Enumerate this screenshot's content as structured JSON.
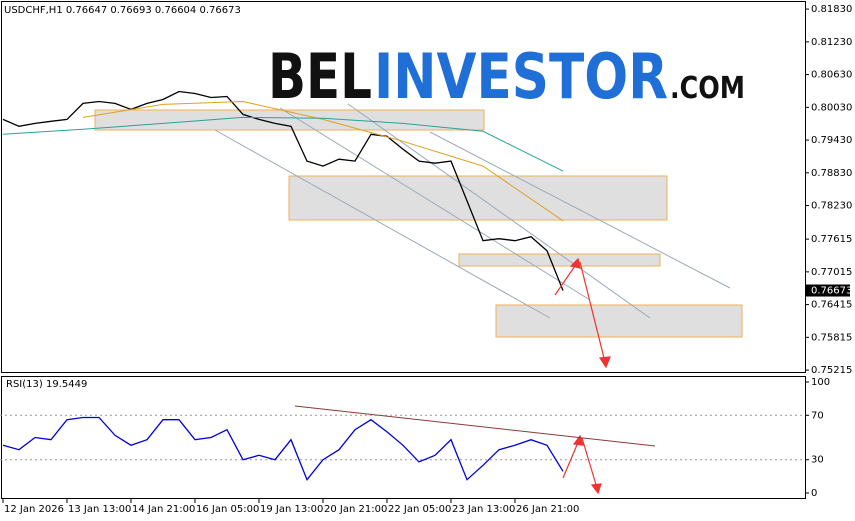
{
  "watermark": [
    "BEL",
    "INVESTOR",
    ".COM"
  ],
  "chart_data": [
    {
      "type": "line",
      "title": "USDCHF,H1  0.76647 0.76693 0.76604 0.76673",
      "x": [
        0,
        8,
        16,
        24,
        32,
        40,
        48,
        56,
        64,
        72,
        80,
        88,
        96,
        104,
        112,
        120,
        128,
        136,
        144,
        152,
        160,
        168,
        176,
        184,
        192,
        200,
        208,
        216,
        224,
        232,
        240,
        248,
        256,
        264,
        272,
        280
      ],
      "series": [
        {
          "color": "#000000",
          "values": [
            0.79809,
            0.79682,
            0.79736,
            0.79773,
            0.79809,
            0.80101,
            0.80137,
            0.80101,
            0.79992,
            0.80101,
            0.80174,
            0.8032,
            0.80283,
            0.8021,
            0.80229,
            0.799,
            0.79809,
            0.79736,
            0.79682,
            0.79044,
            0.78953,
            0.7908,
            0.79044,
            0.79536,
            0.79499,
            0.79263,
            0.79044,
            0.79007,
            0.79044,
            0.78315,
            0.77586,
            0.77622,
            0.77586,
            0.77659,
            0.77403,
            0.76673
          ]
        },
        {
          "color": "#e0a020",
          "x": [
            40,
            80,
            120,
            160,
            200,
            240,
            280
          ],
          "values": [
            0.79846,
            0.80083,
            0.80137,
            0.79809,
            0.79408,
            0.78953,
            0.7795
          ]
        },
        {
          "color": "#2aa198",
          "x": [
            0,
            40,
            80,
            120,
            160,
            200,
            240,
            280
          ],
          "values": [
            0.79536,
            0.79627,
            0.79736,
            0.79846,
            0.79828,
            0.79736,
            0.79591,
            0.78862
          ]
        }
      ],
      "current_price": 0.76673,
      "xlim": [
        -1.5,
        401
      ],
      "ylim": [
        0.7518,
        0.8196
      ],
      "yticks": [
        {
          "value": 0.8183,
          "label": "0.81830"
        },
        {
          "value": 0.8123,
          "label": "0.81230"
        },
        {
          "value": 0.8063,
          "label": "0.80630"
        },
        {
          "value": 0.8003,
          "label": "0.80030"
        },
        {
          "value": 0.7943,
          "label": "0.79430"
        },
        {
          "value": 0.7883,
          "label": "0.78830"
        },
        {
          "value": 0.7823,
          "label": "0.78230"
        },
        0.77615,
        0.77015,
        0.76415,
        0.75815,
        0.75215
      ]
    },
    {
      "type": "line",
      "title": "RSI(13) 19.5449",
      "x": [
        0,
        8,
        16,
        24,
        32,
        40,
        48,
        56,
        64,
        72,
        80,
        88,
        96,
        104,
        112,
        120,
        128,
        136,
        144,
        152,
        160,
        168,
        176,
        184,
        192,
        200,
        208,
        216,
        224,
        232,
        240,
        248,
        256,
        264,
        272,
        280
      ],
      "series": [
        {
          "color": "#0000dd",
          "values": [
            43,
            39,
            50,
            48,
            66,
            68,
            68,
            52,
            43,
            48,
            66,
            66,
            48,
            50,
            57,
            30,
            34,
            30,
            48,
            12,
            30,
            39,
            57,
            66,
            55,
            43,
            28,
            34,
            48,
            12,
            25,
            39,
            43,
            48,
            43,
            19.5449
          ]
        }
      ],
      "xlim": [
        -1.5,
        401
      ],
      "ylim": [
        0,
        100
      ],
      "yticks": [
        100,
        70,
        30,
        0
      ],
      "xticks": [
        {
          "value": 0,
          "label": "12 Jan 2026"
        },
        {
          "value": 32,
          "label": "13 Jan 13:00"
        },
        {
          "value": 64,
          "label": "14 Jan 21:00"
        },
        {
          "value": 96,
          "label": "16 Jan 05:00"
        },
        {
          "value": 128,
          "label": "19 Jan 13:00"
        },
        {
          "value": 160,
          "label": "20 Jan 21:00"
        },
        {
          "value": 192,
          "label": "22 Jan 05:00"
        },
        {
          "value": 224,
          "label": "23 Jan 13:00"
        },
        {
          "value": 256,
          "label": "26 Jan 21:00"
        }
      ]
    }
  ]
}
